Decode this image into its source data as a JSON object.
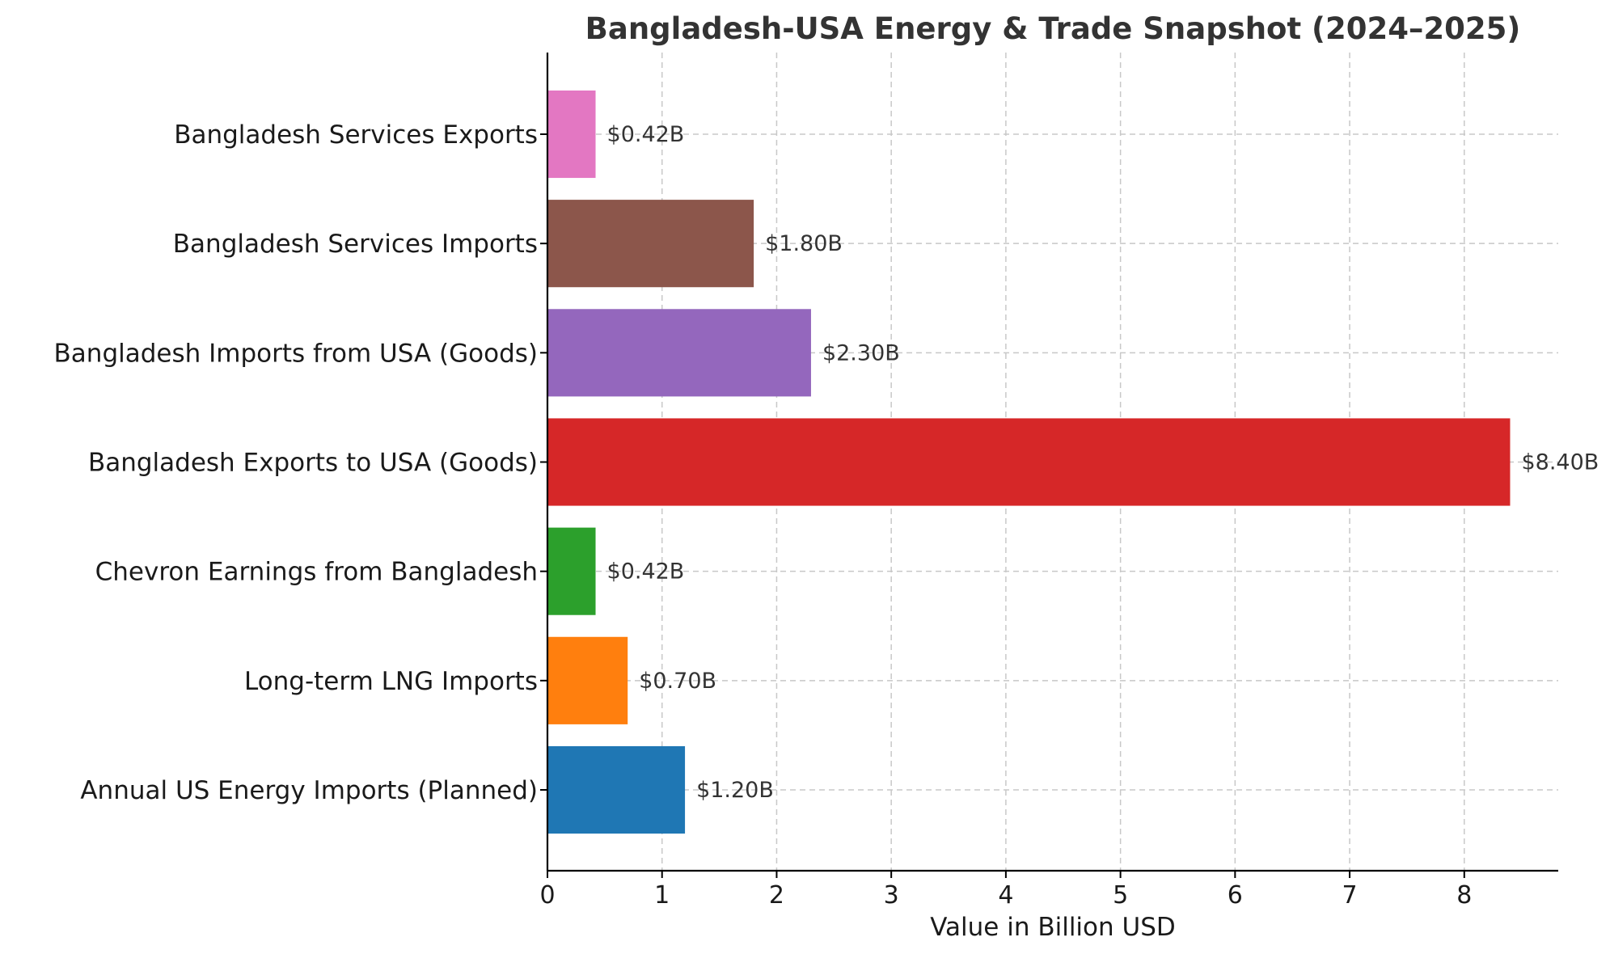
{
  "chart_data": {
    "type": "bar",
    "orientation": "horizontal",
    "title": "Bangladesh-USA Energy & Trade Snapshot (2024–2025)",
    "xlabel": "Value in Billion USD",
    "ylabel": "",
    "xlim": [
      0,
      8.82
    ],
    "xticks": [
      0,
      1,
      2,
      3,
      4,
      5,
      6,
      7,
      8
    ],
    "grid": true,
    "categories": [
      "Annual US Energy Imports (Planned)",
      "Long-term LNG Imports",
      "Chevron Earnings from Bangladesh",
      "Bangladesh Exports to USA (Goods)",
      "Bangladesh Imports from USA (Goods)",
      "Bangladesh Services Imports",
      "Bangladesh Services Exports"
    ],
    "values": [
      1.2,
      0.7,
      0.42,
      8.4,
      2.3,
      1.8,
      0.42
    ],
    "data_labels": [
      "$1.20B",
      "$0.70B",
      "$0.42B",
      "$8.40B",
      "$2.30B",
      "$1.80B",
      "$0.42B"
    ],
    "colors": [
      "#1f77b4",
      "#ff7f0e",
      "#2ca02c",
      "#d62728",
      "#9467bd",
      "#8c564b",
      "#e377c2"
    ]
  }
}
